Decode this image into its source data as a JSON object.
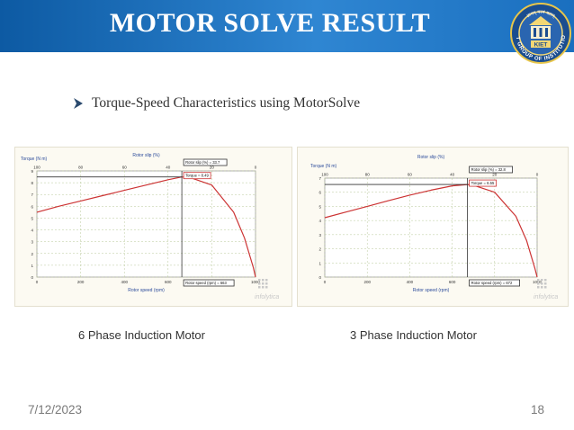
{
  "header": {
    "title": "MOTOR SOLVE RESULT",
    "logo": {
      "icon": "kiet-logo-icon",
      "ring_text": "KIET GROUP OF INSTITUTIONS",
      "top_text": "ज्ञानम् परमं बलम्",
      "badge_text": "KIET"
    }
  },
  "bullet": {
    "icon": "arrow-bullet-icon",
    "text": "Torque-Speed Characteristics using MotorSolve"
  },
  "captions": {
    "left": "6 Phase Induction Motor",
    "right": "3 Phase Induction Motor"
  },
  "footer": {
    "date": "7/12/2023",
    "page": "18"
  },
  "colors": {
    "header_start": "#0d5aa3",
    "header_end": "#2f86d2",
    "curve": "#cc3333",
    "watermark": "#c9c9c9"
  },
  "chart_data": [
    {
      "type": "line",
      "title": "Torque (N m)",
      "top_axis_label": "Rotor slip (%)",
      "top_ticks": [
        "100",
        "80",
        "60",
        "40",
        "20",
        "0"
      ],
      "xlabel": "Rotor speed (rpm)",
      "x_ticks": [
        "0",
        "200",
        "400",
        "600",
        "800",
        "1000"
      ],
      "xlim": [
        0,
        1000
      ],
      "y_ticks": [
        "0",
        "1",
        "2",
        "3",
        "4",
        "5",
        "6",
        "7",
        "8",
        "9"
      ],
      "ylim": [
        0,
        9
      ],
      "grid": true,
      "series": [
        {
          "x": [
            0,
            100,
            200,
            300,
            400,
            500,
            600,
            663,
            700,
            800,
            900,
            950,
            990,
            1000
          ],
          "y": [
            5.5,
            6.0,
            6.45,
            6.9,
            7.35,
            7.8,
            8.25,
            8.49,
            8.44,
            7.8,
            5.5,
            3.3,
            0.8,
            0
          ]
        }
      ],
      "annotations": {
        "slip": "Rotor slip (%) = 33.7",
        "torque": "Torque = 8.49",
        "speed": "Rotor speed (rpm) = 663"
      },
      "marker_x": 663,
      "marker_y": 8.49,
      "watermark": "infolytica"
    },
    {
      "type": "line",
      "title": "Torque (N m)",
      "top_axis_label": "Rotor slip (%)",
      "top_ticks": [
        "100",
        "80",
        "60",
        "40",
        "20",
        "0"
      ],
      "xlabel": "Rotor speed (rpm)",
      "x_ticks": [
        "0",
        "200",
        "400",
        "600",
        "800",
        "1000"
      ],
      "xlim": [
        0,
        1000
      ],
      "y_ticks": [
        "0",
        "1",
        "2",
        "3",
        "4",
        "5",
        "6",
        "7"
      ],
      "ylim": [
        0,
        7
      ],
      "grid": true,
      "series": [
        {
          "x": [
            0,
            100,
            200,
            300,
            400,
            500,
            600,
            672,
            700,
            800,
            900,
            950,
            990,
            1000
          ],
          "y": [
            4.2,
            4.6,
            5.0,
            5.4,
            5.8,
            6.15,
            6.45,
            6.55,
            6.5,
            6.0,
            4.3,
            2.6,
            0.6,
            0
          ]
        }
      ],
      "annotations": {
        "slip": "Rotor slip (%) = 32.8",
        "torque": "Torque = 6.55",
        "speed": "Rotor speed (rpm) = 672"
      },
      "marker_x": 672,
      "marker_y": 6.55,
      "watermark": "infolytica"
    }
  ]
}
